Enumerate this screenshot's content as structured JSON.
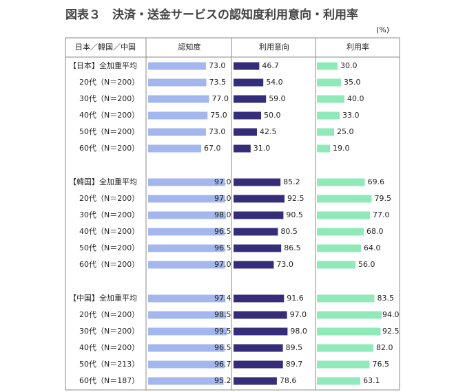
{
  "chart_data": {
    "type": "bar",
    "title": "図表３　決済・送金サービスの認知度利用意向・利用率",
    "unit": "(%)",
    "header": "日本／韓国／中国",
    "categories": [
      "【日本】全加重平均",
      "20代（N＝200）",
      "30代（N＝200）",
      "40代（N＝200）",
      "50代（N＝200）",
      "60代（N＝200）",
      "【韓国】全加重平均",
      "20代（N＝200）",
      "30代（N＝200）",
      "40代（N＝200）",
      "50代（N＝200）",
      "60代（N＝200）",
      "【中国】全加重平均",
      "20代（N＝200）",
      "30代（N＝200）",
      "40代（N＝200）",
      "50代（N＝213）",
      "60代（N＝187）"
    ],
    "series": [
      {
        "name": "認知度",
        "color": "#a3b7ee",
        "values": [
          73,
          73.5,
          77,
          75,
          73,
          67,
          97,
          97,
          98,
          96.5,
          96.5,
          97,
          97.4,
          98.5,
          99.5,
          96.5,
          96.7,
          95.2
        ],
        "value_labels": [
          "73.0",
          "73.5",
          "77.0",
          "75.0",
          "73.0",
          "67.0",
          "97.0",
          "97.0",
          "98.0",
          "96.5",
          "96.5",
          "97.0",
          "97.4",
          "98.5",
          "99.5",
          "96.5",
          "96.7",
          "95.2"
        ]
      },
      {
        "name": "利用意向",
        "color": "#352c7a",
        "values": [
          46.7,
          54,
          59,
          50,
          42.5,
          31,
          85.2,
          92.5,
          90.5,
          80.5,
          86.5,
          73,
          91.6,
          97,
          98,
          89.5,
          89.7,
          78.6
        ],
        "value_labels": [
          "46.7",
          "54.0",
          "59.0",
          "50.0",
          "42.5",
          "31.0",
          "85.2",
          "92.5",
          "90.5",
          "80.5",
          "86.5",
          "73.0",
          "91.6",
          "97.0",
          "98.0",
          "89.5",
          "89.7",
          "78.6"
        ]
      },
      {
        "name": "利用率",
        "color": "#8fe9b8",
        "values": [
          30,
          35,
          40,
          33,
          25,
          19,
          69.6,
          79.5,
          77,
          68,
          64,
          56,
          83.5,
          94,
          92.5,
          82,
          76.5,
          63.1
        ],
        "value_labels": [
          "30.0",
          "35.0",
          "40.0",
          "33.0",
          "25.0",
          "19.0",
          "69.6",
          "79.5",
          "77.0",
          "68.0",
          "64.0",
          "56.0",
          "83.5",
          "94.0",
          "92.5",
          "82.0",
          "76.5",
          "63.1"
        ]
      }
    ]
  }
}
